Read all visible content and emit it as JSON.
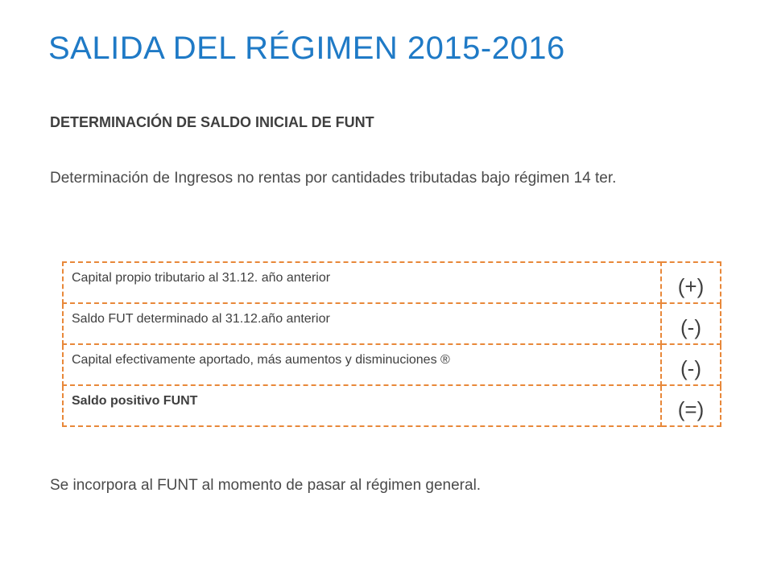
{
  "slide": {
    "title": "SALIDA DEL RÉGIMEN 2015-2016",
    "subheading": "DETERMINACIÓN DE SALDO INICIAL DE FUNT",
    "paragraph": "Determinación de Ingresos no rentas por cantidades tributadas bajo régimen 14 ter.",
    "table": {
      "rows": [
        {
          "label": "Capital propio tributario al 31.12. año anterior",
          "sign": "(+)"
        },
        {
          "label": "Saldo FUT determinado al 31.12.año anterior",
          "sign": "(-)"
        },
        {
          "label": "Capital efectivamente aportado, más aumentos y disminuciones ®",
          "sign": "(-)"
        },
        {
          "label": "Saldo positivo FUNT",
          "sign": "(=)"
        }
      ]
    },
    "footer": "Se incorpora al FUNT al momento de pasar al régimen general.",
    "colors": {
      "title": "#1f7ac6",
      "table_border": "#e8883a",
      "body_text": "#4a4a4a"
    }
  }
}
